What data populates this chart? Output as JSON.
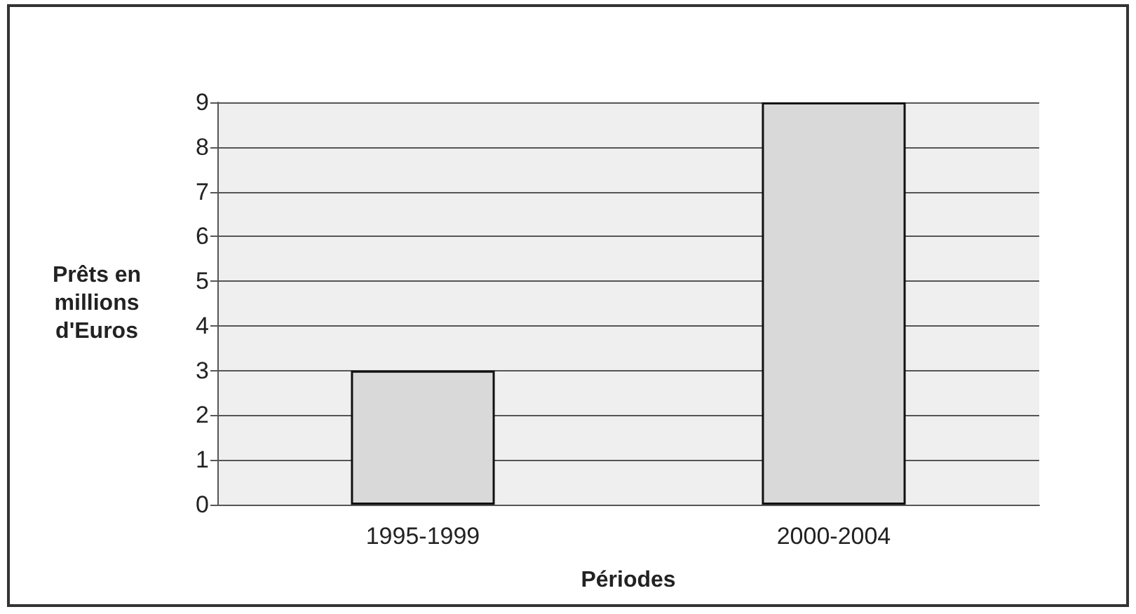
{
  "chart_data": {
    "type": "bar",
    "xlabel": "Périodes",
    "ylabel": "Prêts en millions d'Euros",
    "categories": [
      "1995-1999",
      "2000-2004"
    ],
    "values": [
      3.0,
      9.0
    ],
    "color": "#d9d9d9",
    "ylim": [
      0,
      9
    ],
    "yticks": [
      0,
      1,
      2,
      3,
      4,
      5,
      6,
      7,
      8,
      9
    ],
    "grid": "y"
  }
}
